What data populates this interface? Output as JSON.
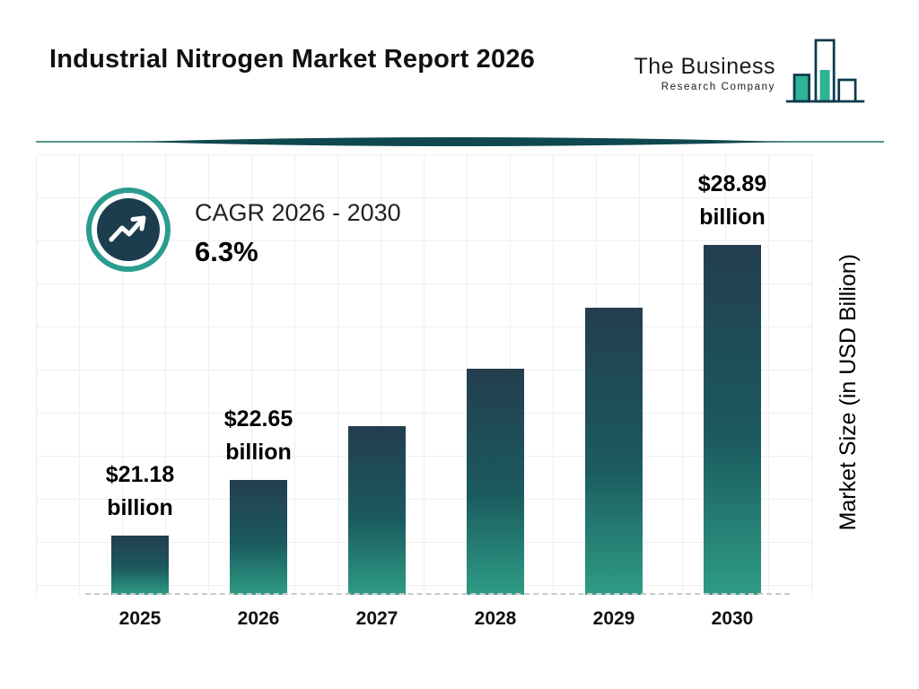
{
  "header": {
    "title": "Industrial Nitrogen Market Report 2026"
  },
  "logo": {
    "line1": "The Business",
    "line2": "Research Company"
  },
  "cagr": {
    "label": "CAGR 2026 - 2030",
    "value": "6.3%"
  },
  "chart_data": {
    "type": "bar",
    "title": "Industrial Nitrogen Market Report 2026",
    "categories": [
      "2025",
      "2026",
      "2027",
      "2028",
      "2029",
      "2030"
    ],
    "values": [
      21.18,
      22.65,
      24.08,
      25.6,
      27.21,
      28.89
    ],
    "value_labels": [
      [
        "$21.18",
        "billion"
      ],
      [
        "$22.65",
        "billion"
      ],
      null,
      null,
      null,
      [
        "$28.89",
        "billion"
      ]
    ],
    "xlabel": "",
    "ylabel": "Market Size (in USD Billion)",
    "ylim": [
      19.6,
      29.6
    ],
    "grid": true,
    "legend": false,
    "colors": {
      "bar_gradient_top": "#233E4E",
      "bar_gradient_bottom": "#2E9C85",
      "accent_teal": "#2A9D8F",
      "badge_navy": "#1C3D4E"
    }
  }
}
